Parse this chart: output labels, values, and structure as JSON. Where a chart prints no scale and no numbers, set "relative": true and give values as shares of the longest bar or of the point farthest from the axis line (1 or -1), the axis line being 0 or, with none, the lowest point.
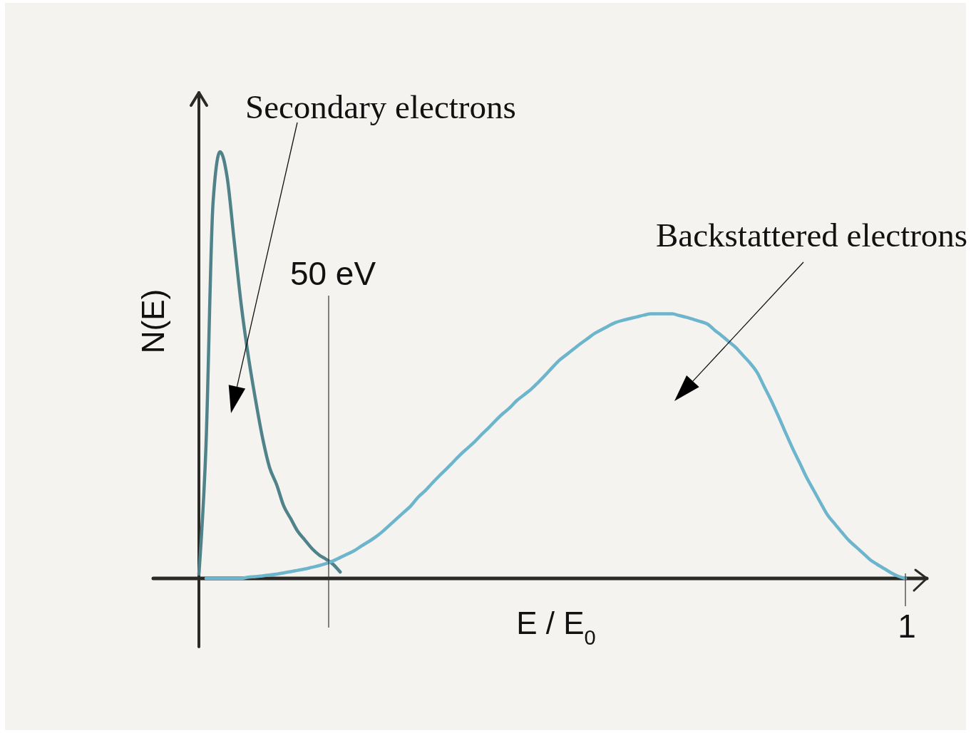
{
  "chart_data": {
    "type": "line",
    "relative": true,
    "xlabel": "E / E$_{0}$",
    "ylabel": "N(E)",
    "categories": [
      null,
      null,
      null,
      null,
      null,
      null,
      null,
      null,
      null,
      null,
      null,
      null,
      null,
      null,
      null,
      null,
      null,
      null,
      null,
      null,
      null,
      null,
      null,
      null,
      null,
      null,
      null,
      null,
      null,
      null,
      null,
      null,
      null,
      null,
      null,
      null,
      null,
      null,
      null,
      null,
      null,
      null,
      null,
      null,
      null,
      null,
      null,
      null,
      null,
      null,
      null,
      null,
      null,
      null,
      null,
      null,
      null,
      null,
      null,
      null,
      null,
      null,
      null,
      null,
      null,
      null,
      null,
      null,
      null,
      null,
      null,
      null,
      null,
      null,
      null,
      null,
      null,
      null,
      null,
      null,
      null,
      null,
      null,
      null,
      null,
      null,
      null,
      null,
      null,
      null,
      null,
      null,
      null,
      null,
      null,
      null,
      null,
      null,
      null,
      null,
      null
    ],
    "series": [
      {
        "color": "#4f8289",
        "values": [
          0.01,
          0.31,
          0.88,
          1,
          0.94,
          0.79,
          0.64,
          0.52,
          0.42,
          0.33,
          0.26,
          0.22,
          0.17,
          0.14,
          0.11,
          0.09,
          0.07,
          0.055,
          0.045,
          0.033,
          0.015,
          null,
          null,
          null,
          null,
          null,
          null,
          null,
          null,
          null,
          null,
          null,
          null,
          null,
          null,
          null,
          null,
          null,
          null,
          null,
          null,
          null,
          null,
          null,
          null,
          null,
          null,
          null,
          null,
          null,
          null,
          null,
          null,
          null,
          null,
          null,
          null,
          null,
          null,
          null,
          null,
          null,
          null,
          null,
          null,
          null,
          null,
          null,
          null,
          null,
          null,
          null,
          null,
          null,
          null,
          null,
          null,
          null,
          null,
          null,
          null,
          null,
          null,
          null,
          null,
          null,
          null,
          null,
          null,
          null,
          null,
          null,
          null,
          null,
          null,
          null,
          null,
          null,
          null,
          null,
          null
        ]
      },
      {
        "color": "#6cb5cc",
        "values": [
          null,
          0,
          0,
          0,
          0,
          0,
          0,
          0.003,
          0.004,
          0.006,
          0.008,
          0.01,
          0.013,
          0.016,
          0.019,
          0.022,
          0.026,
          0.03,
          0.035,
          0.041,
          0.049,
          0.057,
          0.065,
          0.076,
          0.086,
          0.097,
          0.11,
          0.125,
          0.14,
          0.155,
          0.17,
          0.19,
          0.205,
          0.223,
          0.24,
          0.256,
          0.273,
          0.29,
          0.305,
          0.32,
          0.337,
          0.353,
          0.37,
          0.386,
          0.4,
          0.417,
          0.43,
          0.443,
          0.459,
          0.476,
          0.494,
          0.511,
          0.524,
          0.537,
          0.55,
          0.562,
          0.574,
          0.583,
          0.592,
          0.6,
          0.605,
          0.609,
          0.613,
          0.617,
          0.62,
          0.62,
          0.62,
          0.62,
          0.616,
          0.612,
          0.607,
          0.602,
          0.596,
          0.582,
          0.569,
          0.555,
          0.541,
          0.523,
          0.505,
          0.483,
          0.45,
          0.417,
          0.381,
          0.343,
          0.306,
          0.272,
          0.237,
          0.207,
          0.177,
          0.148,
          0.128,
          0.108,
          0.089,
          0.074,
          0.059,
          0.044,
          0.033,
          0.023,
          0.013,
          0.005,
          0
        ]
      }
    ],
    "annotations": [
      "Secondary electrons",
      "Backstattered electrons",
      "50 eV",
      "1"
    ]
  }
}
